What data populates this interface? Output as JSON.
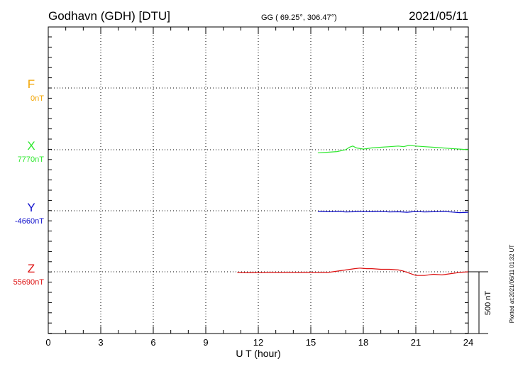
{
  "header": {
    "station": "Godhavn (GDH)  [DTU]",
    "coords": "GG ( 69.25°, 306.47°)",
    "date": "2021/05/11"
  },
  "footer_note": "Plotted at:2021/06/11 01:32 UT",
  "scale_bar_label": "500 nT",
  "colors": {
    "F": "#f2a400",
    "X": "#2ee82e",
    "Y": "#1010cc",
    "Z": "#dd1010",
    "axis": "#000000",
    "grid": "#000000"
  },
  "chart_data": {
    "type": "line",
    "xlabel": "U T (hour)",
    "xlim": [
      0,
      24
    ],
    "xticks": [
      "0",
      "3",
      "6",
      "9",
      "12",
      "15",
      "18",
      "21",
      "24"
    ],
    "grid": "dotted",
    "scale_nT": 500,
    "series": [
      {
        "key": "F",
        "name": "F",
        "baseline_label": "0nT",
        "values": []
      },
      {
        "key": "X",
        "name": "X",
        "baseline_label": "7770nT",
        "values": [
          [
            15.4,
            -25
          ],
          [
            16.0,
            -20
          ],
          [
            16.5,
            -15
          ],
          [
            17.0,
            0
          ],
          [
            17.2,
            20
          ],
          [
            17.4,
            30
          ],
          [
            17.6,
            15
          ],
          [
            18.0,
            5
          ],
          [
            18.5,
            15
          ],
          [
            19.0,
            20
          ],
          [
            19.5,
            25
          ],
          [
            20.0,
            30
          ],
          [
            20.3,
            25
          ],
          [
            20.6,
            35
          ],
          [
            21.0,
            30
          ],
          [
            21.5,
            25
          ],
          [
            22.0,
            20
          ],
          [
            22.5,
            15
          ],
          [
            23.0,
            10
          ],
          [
            23.5,
            5
          ],
          [
            24.0,
            0
          ]
        ]
      },
      {
        "key": "Y",
        "name": "Y",
        "baseline_label": "-4660nT",
        "values": [
          [
            15.4,
            -5
          ],
          [
            16.0,
            -8
          ],
          [
            16.5,
            -5
          ],
          [
            17.0,
            -10
          ],
          [
            17.5,
            -8
          ],
          [
            18.0,
            -5
          ],
          [
            18.5,
            -8
          ],
          [
            19.0,
            -5
          ],
          [
            19.5,
            -10
          ],
          [
            20.0,
            -8
          ],
          [
            20.5,
            -12
          ],
          [
            21.0,
            -6
          ],
          [
            21.5,
            -10
          ],
          [
            22.0,
            -8
          ],
          [
            22.5,
            -5
          ],
          [
            23.0,
            -10
          ],
          [
            23.5,
            -15
          ],
          [
            24.0,
            -12
          ]
        ]
      },
      {
        "key": "Z",
        "name": "Z",
        "baseline_label": "55690nT",
        "values": [
          [
            10.8,
            -5
          ],
          [
            11.5,
            -8
          ],
          [
            12.5,
            -5
          ],
          [
            15.4,
            -5
          ],
          [
            16.0,
            -5
          ],
          [
            16.5,
            5
          ],
          [
            17.0,
            15
          ],
          [
            17.5,
            25
          ],
          [
            17.8,
            30
          ],
          [
            18.2,
            25
          ],
          [
            18.5,
            25
          ],
          [
            19.0,
            20
          ],
          [
            19.5,
            20
          ],
          [
            20.0,
            15
          ],
          [
            20.3,
            5
          ],
          [
            20.6,
            -10
          ],
          [
            21.0,
            -30
          ],
          [
            21.5,
            -30
          ],
          [
            22.0,
            -20
          ],
          [
            22.5,
            -25
          ],
          [
            23.0,
            -15
          ],
          [
            23.5,
            -5
          ],
          [
            24.0,
            0
          ]
        ]
      }
    ]
  }
}
